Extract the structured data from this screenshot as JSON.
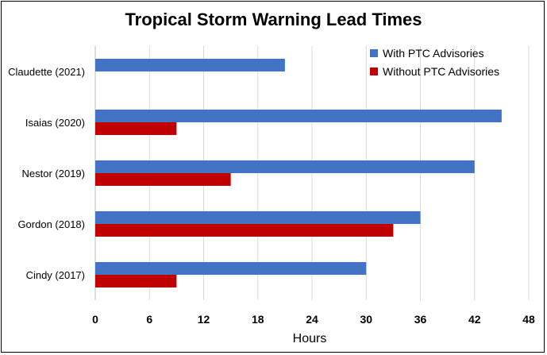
{
  "chart_data": {
    "type": "bar",
    "orientation": "horizontal",
    "title": "Tropical Storm Warning Lead Times",
    "xlabel": "Hours",
    "ylabel": "",
    "xlim": [
      0,
      48
    ],
    "x_ticks": [
      "0",
      "6",
      "12",
      "18",
      "24",
      "30",
      "36",
      "42",
      "48"
    ],
    "categories": [
      "Claudette (2021)",
      "Isaias (2020)",
      "Nestor (2019)",
      "Gordon (2018)",
      "Cindy (2017)"
    ],
    "series": [
      {
        "name": "With PTC Advisories",
        "color": "#4472C4",
        "values": [
          21,
          45,
          42,
          36,
          30
        ]
      },
      {
        "name": "Without PTC Advisories",
        "color": "#C00000",
        "values": [
          null,
          9,
          15,
          33,
          9
        ]
      }
    ],
    "grid": "vertical",
    "legend_position": "top-right"
  }
}
